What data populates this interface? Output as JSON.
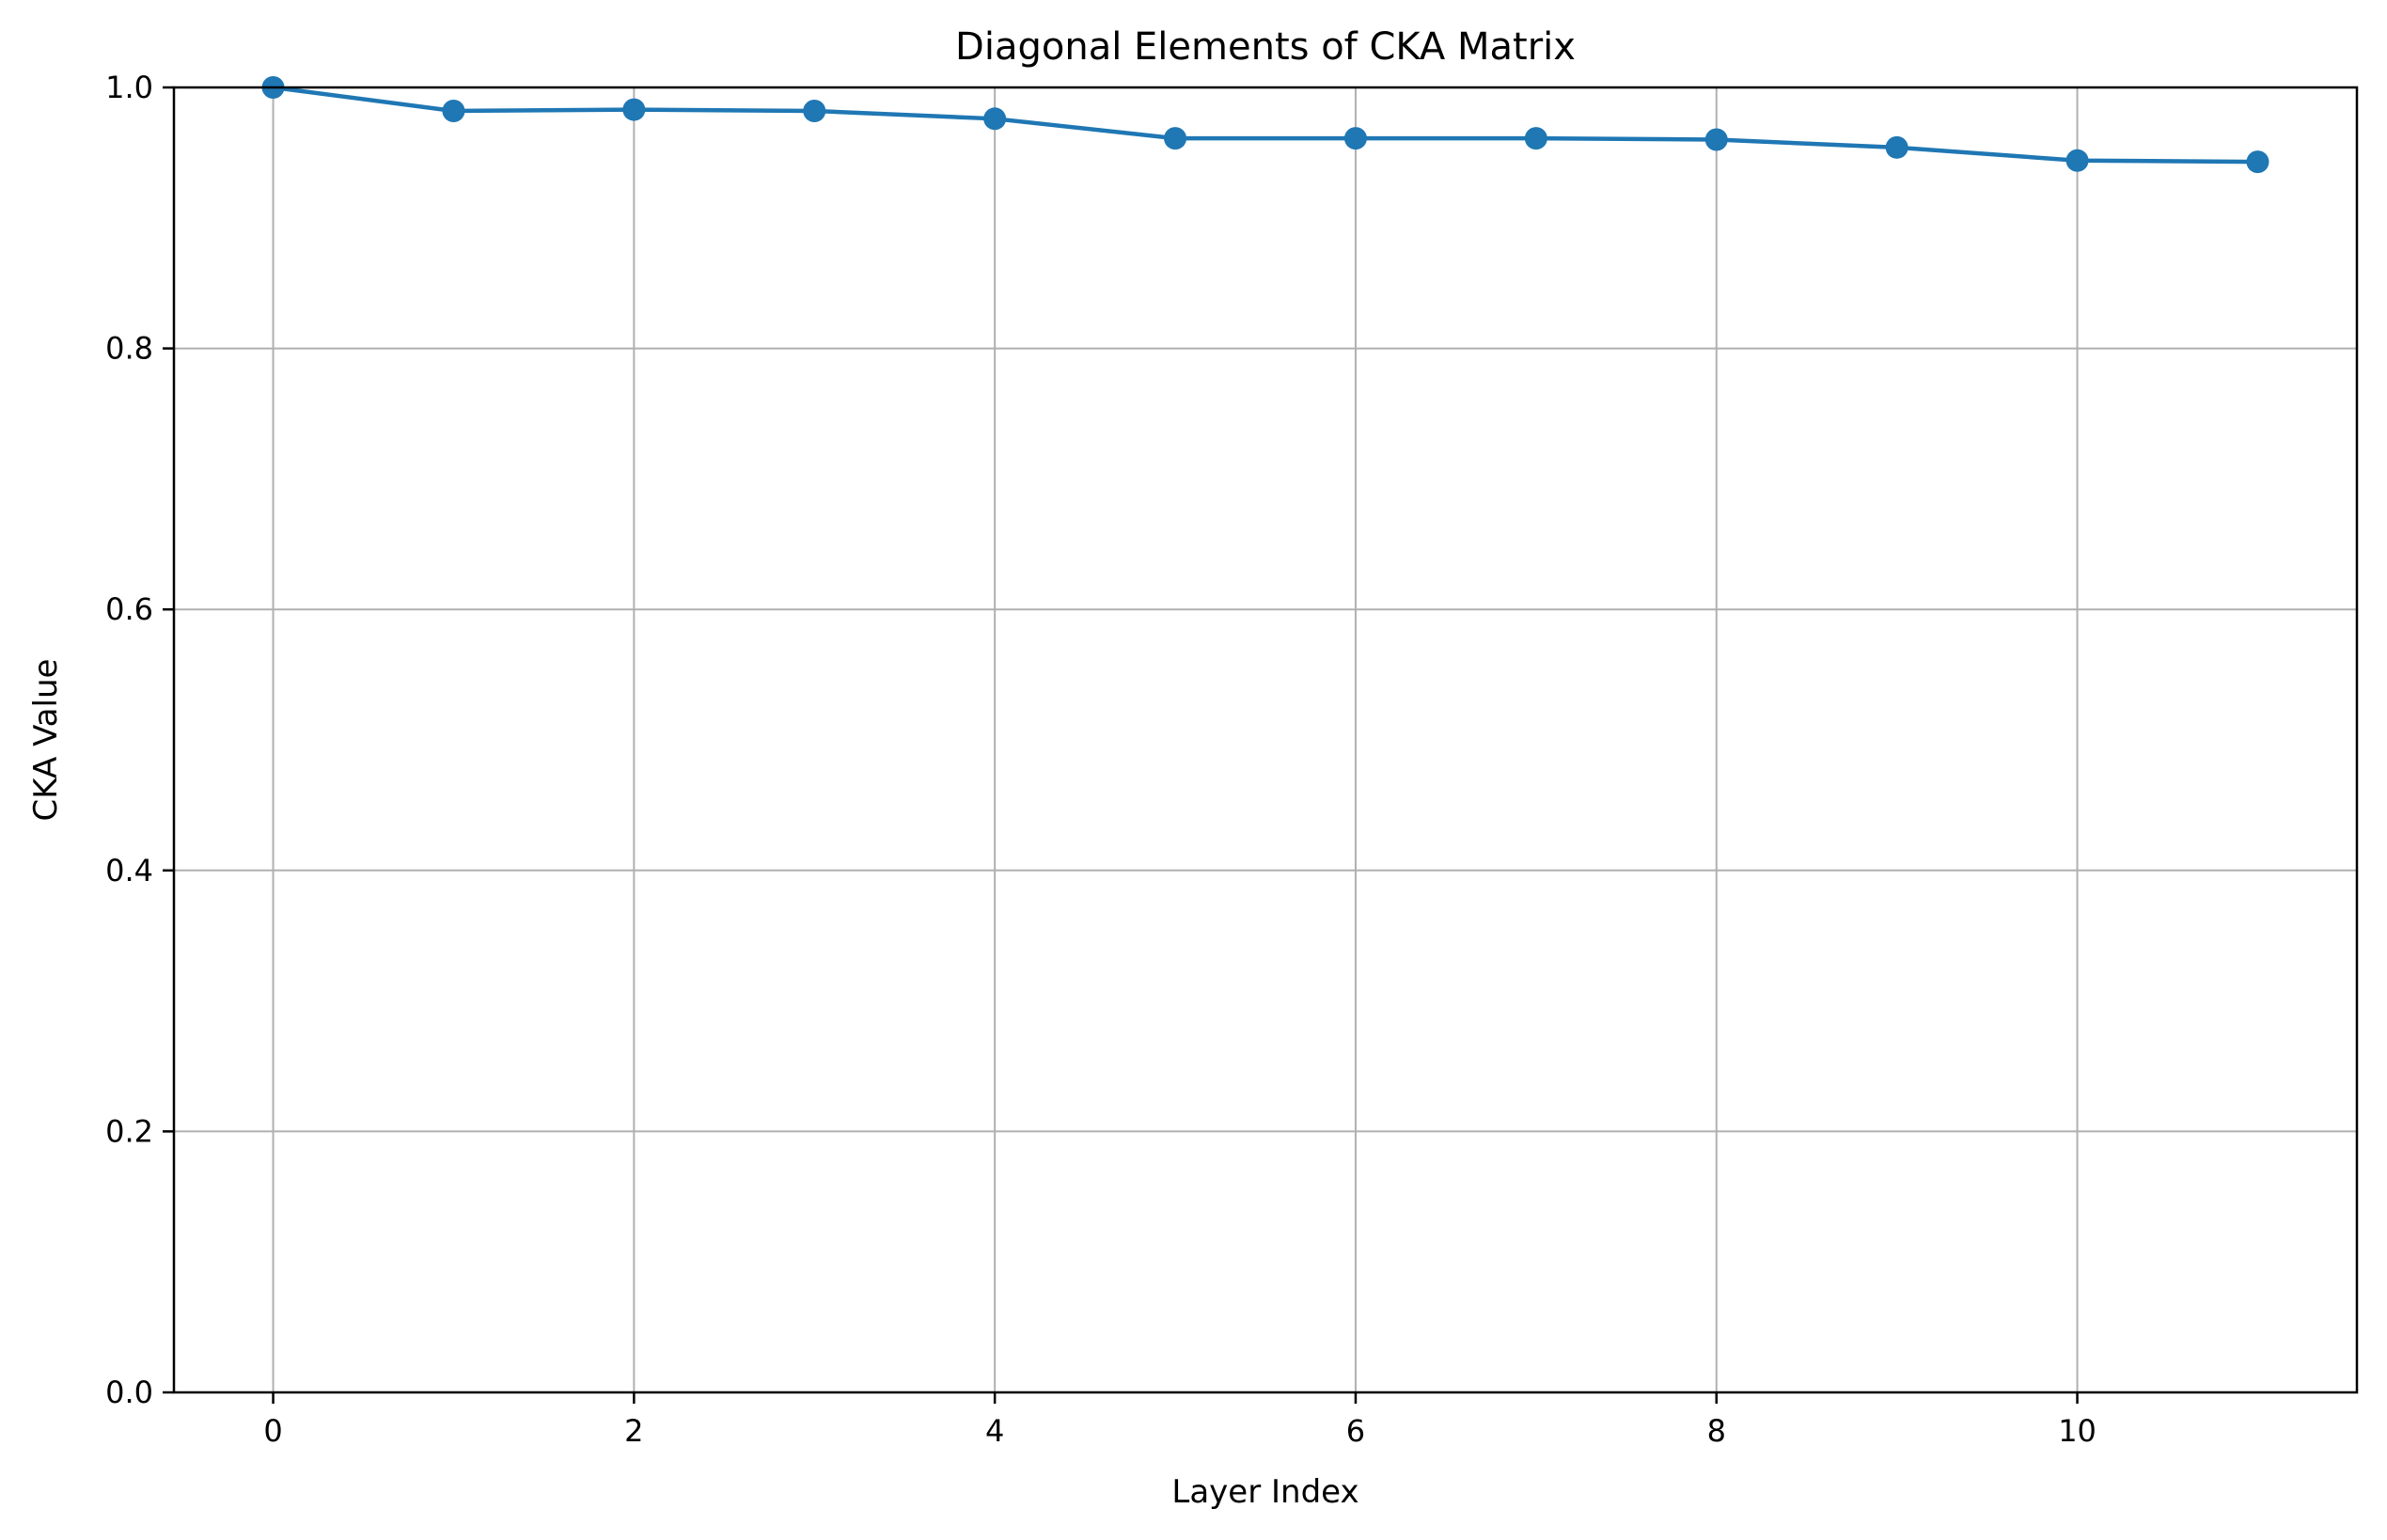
{
  "chart_data": {
    "type": "line",
    "title": "Diagonal Elements of CKA Matrix",
    "xlabel": "Layer Index",
    "ylabel": "CKA Value",
    "x": [
      0,
      1,
      2,
      3,
      4,
      5,
      6,
      7,
      8,
      9,
      10,
      11
    ],
    "y": [
      1.0,
      0.982,
      0.983,
      0.982,
      0.976,
      0.961,
      0.961,
      0.961,
      0.96,
      0.954,
      0.944,
      0.943
    ],
    "xlim": [
      -0.55,
      11.55
    ],
    "ylim": [
      0.0,
      1.0
    ],
    "xticks": [
      0,
      2,
      4,
      6,
      8,
      10
    ],
    "xtick_labels": [
      "0",
      "2",
      "4",
      "6",
      "8",
      "10"
    ],
    "yticks": [
      0.0,
      0.2,
      0.4,
      0.6,
      0.8,
      1.0
    ],
    "ytick_labels": [
      "0.0",
      "0.2",
      "0.4",
      "0.6",
      "0.8",
      "1.0"
    ],
    "grid": true,
    "line_color": "#1f77b4",
    "marker": "circle"
  }
}
